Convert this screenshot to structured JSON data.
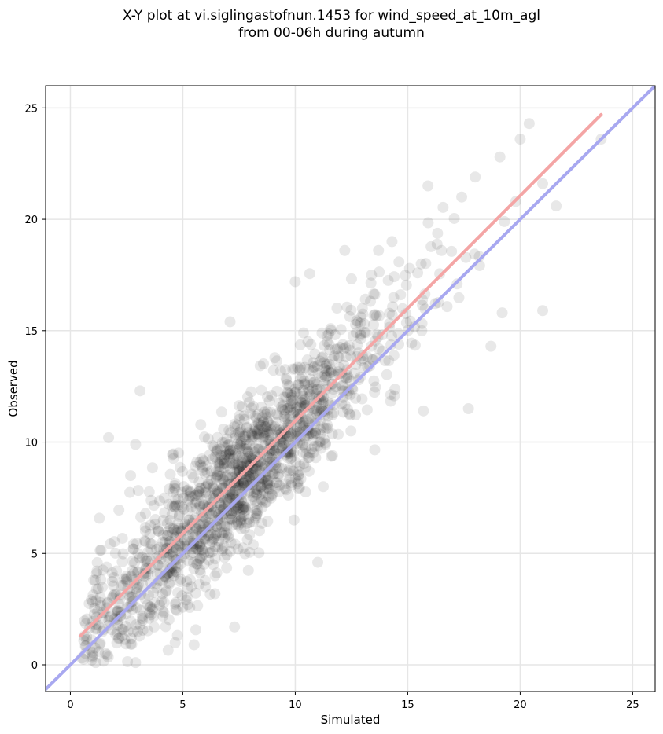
{
  "chart_data": {
    "type": "scatter",
    "title_line1": "X-Y plot at vi.siglingastofnun.1453 for wind_speed_at_10m_agl",
    "title_line2": "from 00-06h during autumn",
    "xlabel": "Simulated",
    "ylabel": "Observed",
    "xlim": [
      -1.1,
      26
    ],
    "ylim": [
      -1.2,
      26
    ],
    "xticks": [
      0,
      5,
      10,
      15,
      20,
      25
    ],
    "yticks": [
      0,
      5,
      10,
      15,
      20,
      25
    ],
    "grid": true,
    "point_color": "#000000",
    "point_alpha": 0.09,
    "points_summary": {
      "description_count": 1500,
      "trend_slope": 1.0,
      "trend_intercept": 0.8,
      "scatter_sd": 1.6
    },
    "notable_points": [
      [
        20.4,
        24.3
      ],
      [
        23.6,
        23.6
      ],
      [
        20.0,
        23.6
      ],
      [
        19.1,
        22.8
      ],
      [
        18.0,
        21.9
      ],
      [
        21.0,
        21.6
      ],
      [
        15.9,
        21.5
      ],
      [
        17.4,
        21.0
      ],
      [
        21.6,
        20.6
      ],
      [
        19.3,
        19.9
      ],
      [
        21.0,
        15.9
      ],
      [
        19.2,
        15.8
      ],
      [
        18.7,
        14.3
      ],
      [
        17.7,
        11.5
      ],
      [
        15.7,
        11.4
      ],
      [
        11.0,
        4.6
      ],
      [
        7.3,
        1.7
      ],
      [
        5.5,
        0.9
      ],
      [
        2.9,
        0.1
      ],
      [
        1.7,
        10.2
      ],
      [
        3.1,
        12.3
      ],
      [
        2.9,
        9.9
      ],
      [
        7.1,
        15.4
      ],
      [
        10.0,
        17.2
      ],
      [
        13.7,
        18.6
      ],
      [
        14.3,
        19.0
      ],
      [
        15.6,
        18.0
      ],
      [
        12.2,
        18.6
      ],
      [
        16.5,
        18.6
      ],
      [
        19.8,
        20.8
      ]
    ],
    "series": [
      {
        "name": "",
        "kind": "fit-line",
        "color": "#f4a5a5",
        "x": [
          0.45,
          23.6
        ],
        "y": [
          1.3,
          24.7
        ]
      },
      {
        "name": "",
        "kind": "identity-line",
        "color": "#a8a8f0",
        "x": [
          -1.1,
          26
        ],
        "y": [
          -1.1,
          26
        ]
      }
    ]
  }
}
